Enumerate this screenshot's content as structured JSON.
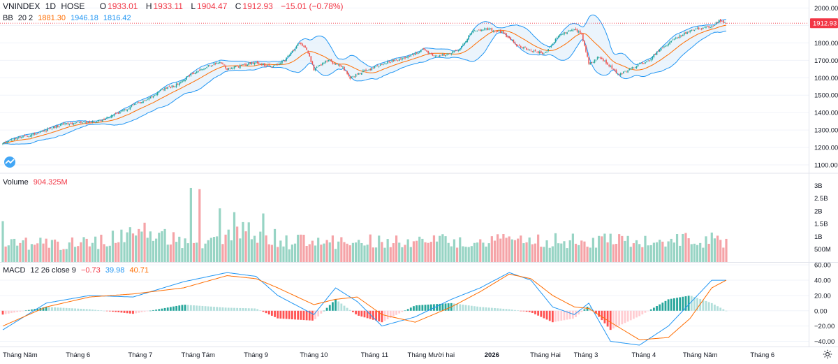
{
  "header": {
    "symbol": "VNINDEX",
    "interval": "1D",
    "exchange": "HOSE",
    "open_label": "O",
    "open": "1933.01",
    "high_label": "H",
    "high": "1933.11",
    "low_label": "L",
    "low": "1904.47",
    "close_label": "C",
    "close": "1912.93",
    "change": "−15.01 (−0.78%)"
  },
  "bb_legend": {
    "name": "BB",
    "params": "20 2",
    "basis": "1881.30",
    "upper": "1946.18",
    "lower": "1816.42"
  },
  "volume_legend": {
    "name": "Volume",
    "value": "904.325M"
  },
  "macd_legend": {
    "name": "MACD",
    "params": "12 26 close 9",
    "histogram": "−0.73",
    "macd": "39.98",
    "signal": "40.71"
  },
  "price_axis_labels": [
    "2000.00",
    "1900.00",
    "1800.00",
    "1700.00",
    "1600.00",
    "1500.00",
    "1400.00",
    "1300.00",
    "1200.00",
    "1100.00"
  ],
  "last_price_label": "1912.93",
  "volume_axis_labels": [
    "3B",
    "2.5B",
    "2B",
    "1.5B",
    "1B",
    "500M"
  ],
  "macd_axis_labels": [
    "60.00",
    "40.00",
    "20.00",
    "0.00",
    "−20.00",
    "−40.00"
  ],
  "time_axis_labels": [
    "Tháng Năm",
    "Tháng 6",
    "Tháng 7",
    "Tháng Tám",
    "Tháng 9",
    "Tháng 10",
    "Tháng 11",
    "Tháng Mười hai",
    "2026",
    "Tháng Hai",
    "Tháng 3",
    "Tháng 4",
    "Tháng Năm",
    "Tháng 6"
  ],
  "colors": {
    "up": "#26a69a",
    "down": "#ef5350",
    "bb_basis": "#ff6d00",
    "bb_band": "#2196f3",
    "bb_fill": "#e3f0fb",
    "vol_up": "#97d4c4",
    "vol_down": "#f5a3a7",
    "macd_line": "#2196f3",
    "signal_line": "#ff6d00",
    "last_price": "#f23645",
    "grid": "#f0f3fa",
    "pane_border": "#e0e3eb"
  },
  "chart_data": [
    {
      "type": "candlestick",
      "title": "VNINDEX 1D HOSE",
      "y_range": [
        1060,
        2030
      ],
      "last_close": 1912.93,
      "period": [
        "Tháng Năm",
        "Tháng Năm"
      ],
      "close_path": [
        [
          0,
          1220
        ],
        [
          10,
          1255
        ],
        [
          20,
          1275
        ],
        [
          30,
          1300
        ],
        [
          40,
          1330
        ],
        [
          50,
          1340
        ],
        [
          60,
          1345
        ],
        [
          70,
          1360
        ],
        [
          80,
          1400
        ],
        [
          90,
          1440
        ],
        [
          100,
          1480
        ],
        [
          110,
          1530
        ],
        [
          120,
          1560
        ],
        [
          130,
          1620
        ],
        [
          140,
          1660
        ],
        [
          150,
          1690
        ],
        [
          155,
          1650
        ],
        [
          165,
          1670
        ],
        [
          175,
          1690
        ],
        [
          185,
          1660
        ],
        [
          195,
          1700
        ],
        [
          200,
          1750
        ],
        [
          205,
          1800
        ],
        [
          210,
          1760
        ],
        [
          215,
          1650
        ],
        [
          225,
          1700
        ],
        [
          235,
          1660
        ],
        [
          240,
          1600
        ],
        [
          250,
          1640
        ],
        [
          260,
          1670
        ],
        [
          270,
          1700
        ],
        [
          280,
          1720
        ],
        [
          290,
          1760
        ],
        [
          300,
          1720
        ],
        [
          315,
          1760
        ],
        [
          325,
          1870
        ],
        [
          335,
          1880
        ],
        [
          345,
          1860
        ],
        [
          355,
          1790
        ],
        [
          365,
          1750
        ],
        [
          375,
          1740
        ],
        [
          385,
          1850
        ],
        [
          395,
          1880
        ],
        [
          400,
          1850
        ],
        [
          405,
          1680
        ],
        [
          412,
          1720
        ],
        [
          418,
          1680
        ],
        [
          425,
          1620
        ],
        [
          432,
          1640
        ],
        [
          440,
          1680
        ],
        [
          447,
          1700
        ],
        [
          452,
          1750
        ],
        [
          460,
          1800
        ],
        [
          470,
          1850
        ],
        [
          480,
          1880
        ],
        [
          490,
          1890
        ],
        [
          495,
          1930
        ],
        [
          500,
          1913
        ]
      ]
    },
    {
      "type": "line",
      "title": "BB 20 2",
      "series": [
        {
          "name": "basis",
          "last": 1881.3
        },
        {
          "name": "upper",
          "last": 1946.18
        },
        {
          "name": "lower",
          "last": 1816.42
        }
      ]
    },
    {
      "type": "bar",
      "title": "Volume",
      "y_range": [
        0,
        3200000000
      ],
      "last": 904325000,
      "spikes": [
        {
          "at": 130,
          "value": 2900000000
        },
        {
          "at": 137,
          "value": 2850000000
        },
        {
          "at": 150,
          "value": 2100000000
        },
        {
          "at": 160,
          "value": 1950000000
        },
        {
          "at": 180,
          "value": 1900000000
        },
        {
          "at": 0,
          "value": 1600000000
        }
      ]
    },
    {
      "type": "line",
      "title": "MACD 12 26 close 9",
      "y_range": [
        -45,
        62
      ],
      "series": [
        {
          "name": "macd",
          "last": 39.98,
          "points": [
            [
              0,
              -25
            ],
            [
              30,
              10
            ],
            [
              60,
              20
            ],
            [
              90,
              18
            ],
            [
              125,
              38
            ],
            [
              155,
              50
            ],
            [
              175,
              45
            ],
            [
              190,
              20
            ],
            [
              215,
              -5
            ],
            [
              230,
              30
            ],
            [
              245,
              12
            ],
            [
              262,
              -20
            ],
            [
              285,
              -8
            ],
            [
              310,
              15
            ],
            [
              330,
              30
            ],
            [
              350,
              50
            ],
            [
              365,
              40
            ],
            [
              380,
              5
            ],
            [
              395,
              -5
            ],
            [
              405,
              10
            ],
            [
              420,
              -40
            ],
            [
              440,
              -45
            ],
            [
              460,
              -20
            ],
            [
              475,
              10
            ],
            [
              490,
              40
            ],
            [
              500,
              40
            ]
          ]
        },
        {
          "name": "signal",
          "last": 40.71,
          "points": [
            [
              0,
              -20
            ],
            [
              30,
              5
            ],
            [
              60,
              18
            ],
            [
              90,
              22
            ],
            [
              125,
              30
            ],
            [
              155,
              46
            ],
            [
              175,
              42
            ],
            [
              190,
              30
            ],
            [
              215,
              8
            ],
            [
              230,
              15
            ],
            [
              245,
              18
            ],
            [
              262,
              -5
            ],
            [
              285,
              -15
            ],
            [
              310,
              5
            ],
            [
              330,
              25
            ],
            [
              350,
              48
            ],
            [
              365,
              42
            ],
            [
              380,
              20
            ],
            [
              395,
              5
            ],
            [
              405,
              3
            ],
            [
              420,
              -15
            ],
            [
              440,
              -38
            ],
            [
              460,
              -35
            ],
            [
              475,
              -10
            ],
            [
              490,
              30
            ],
            [
              500,
              40
            ]
          ]
        },
        {
          "name": "histogram",
          "last": -0.73
        }
      ]
    }
  ]
}
